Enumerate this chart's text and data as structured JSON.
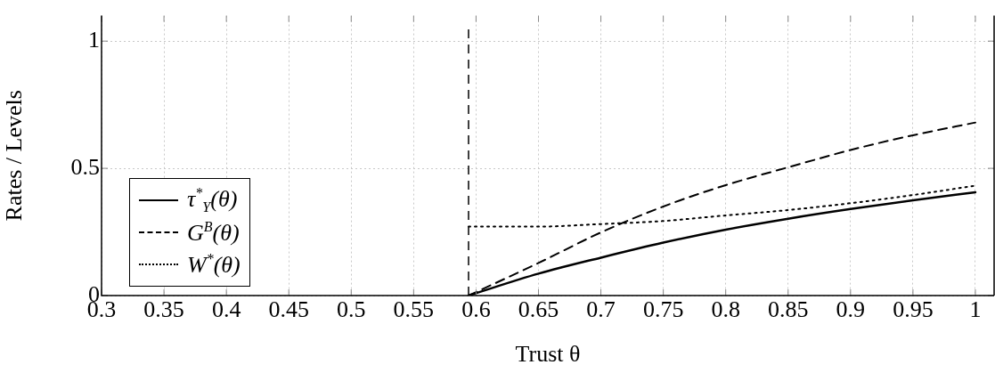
{
  "chart_data": {
    "type": "line",
    "xlabel": "Trust θ",
    "ylabel": "Rates / Levels",
    "xlim": [
      0.3,
      1.015
    ],
    "ylim": [
      0,
      1.1
    ],
    "xticks": [
      0.3,
      0.35,
      0.4,
      0.45,
      0.5,
      0.55,
      0.6,
      0.65,
      0.7,
      0.75,
      0.8,
      0.85,
      0.9,
      0.95,
      1
    ],
    "yticks": [
      0,
      0.5,
      1
    ],
    "grid": true,
    "legend": "bottom left",
    "marker": "none",
    "ref_lines": [
      {
        "axis": "x",
        "value": 0.594,
        "line_style": "dashed",
        "color": "#000000"
      }
    ],
    "series": [
      {
        "name": "τ$^{*}$$_{Y}$(θ)",
        "color": "#000000",
        "line_style": "solid",
        "x": [
          0.594,
          0.65,
          0.7,
          0.75,
          0.8,
          0.85,
          0.9,
          0.95,
          1.0
        ],
        "values": [
          0,
          0.086,
          0.149,
          0.208,
          0.259,
          0.302,
          0.34,
          0.374,
          0.406
        ]
      },
      {
        "name": "G$^{B}$(θ)",
        "color": "#000000",
        "line_style": "dashed",
        "x": [
          0.594,
          0.65,
          0.7,
          0.75,
          0.8,
          0.85,
          0.9,
          0.95,
          1.0
        ],
        "values": [
          0,
          0.128,
          0.248,
          0.35,
          0.434,
          0.504,
          0.572,
          0.63,
          0.68
        ]
      },
      {
        "name": "W$^{*}$(θ)",
        "color": "#000000",
        "line_style": "dotted",
        "x": [
          0.594,
          0.65,
          0.7,
          0.75,
          0.8,
          0.85,
          0.9,
          0.95,
          1.0
        ],
        "values": [
          0.271,
          0.271,
          0.281,
          0.293,
          0.315,
          0.336,
          0.363,
          0.395,
          0.432
        ]
      }
    ]
  }
}
